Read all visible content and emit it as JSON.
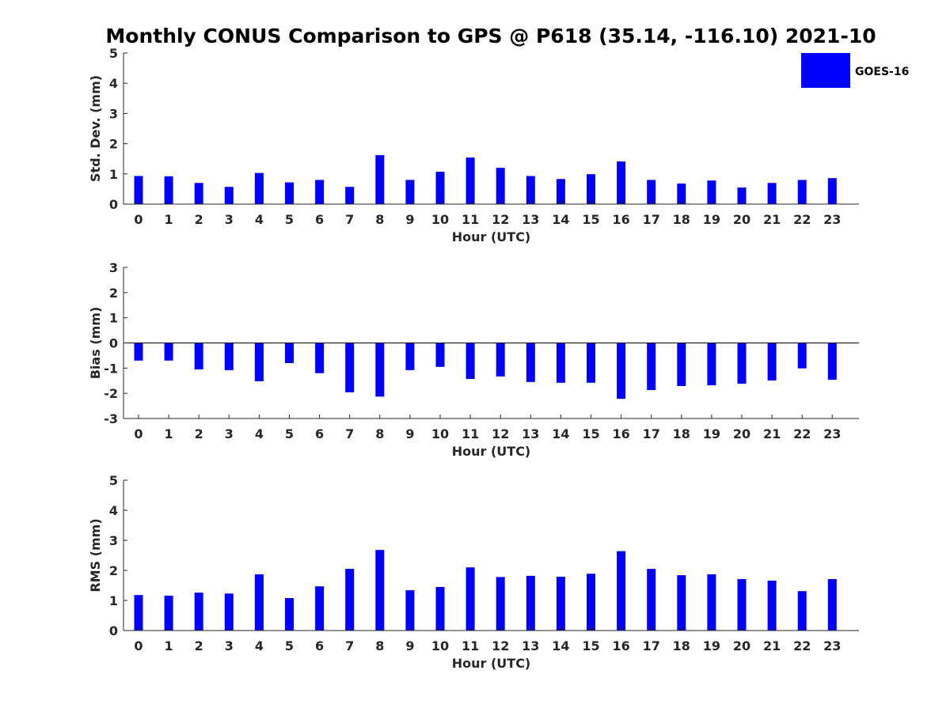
{
  "chart_data": {
    "title": "Monthly CONUS Comparison to GPS @ P618 (35.14, -116.10) 2021-10",
    "legend": {
      "label": "GOES-16",
      "placement": "top-right"
    },
    "bar_color": "#0000ff",
    "panels": [
      {
        "type": "bar",
        "ylabel": "Std. Dev. (mm)",
        "xlabel": "Hour (UTC)",
        "ylim": [
          0,
          5
        ],
        "yticks": [
          0,
          1,
          2,
          3,
          4,
          5
        ],
        "categories": [
          "0",
          "1",
          "2",
          "3",
          "4",
          "5",
          "6",
          "7",
          "8",
          "9",
          "10",
          "11",
          "12",
          "13",
          "14",
          "15",
          "16",
          "17",
          "18",
          "19",
          "20",
          "21",
          "22",
          "23"
        ],
        "series": [
          {
            "name": "GOES-16",
            "values": [
              0.93,
              0.92,
              0.7,
              0.57,
              1.03,
              0.72,
              0.8,
              0.57,
              1.62,
              0.8,
              1.07,
              1.54,
              1.2,
              0.93,
              0.83,
              0.99,
              1.41,
              0.8,
              0.68,
              0.78,
              0.55,
              0.7,
              0.8,
              0.86
            ]
          }
        ]
      },
      {
        "type": "bar",
        "ylabel": "Bias (mm)",
        "xlabel": "Hour (UTC)",
        "ylim": [
          -3,
          3
        ],
        "yticks": [
          -3,
          -2,
          -1,
          0,
          1,
          2,
          3
        ],
        "zero_line": true,
        "categories": [
          "0",
          "1",
          "2",
          "3",
          "4",
          "5",
          "6",
          "7",
          "8",
          "9",
          "10",
          "11",
          "12",
          "13",
          "14",
          "15",
          "16",
          "17",
          "18",
          "19",
          "20",
          "21",
          "22",
          "23"
        ],
        "series": [
          {
            "name": "GOES-16",
            "values": [
              -0.7,
              -0.7,
              -1.05,
              -1.08,
              -1.52,
              -0.8,
              -1.2,
              -1.96,
              -2.13,
              -1.08,
              -0.95,
              -1.43,
              -1.33,
              -1.55,
              -1.58,
              -1.58,
              -2.22,
              -1.87,
              -1.71,
              -1.68,
              -1.62,
              -1.49,
              -1.01,
              -1.46
            ]
          }
        ]
      },
      {
        "type": "bar",
        "ylabel": "RMS (mm)",
        "xlabel": "Hour (UTC)",
        "ylim": [
          0,
          5
        ],
        "yticks": [
          0,
          1,
          2,
          3,
          4,
          5
        ],
        "categories": [
          "0",
          "1",
          "2",
          "3",
          "4",
          "5",
          "6",
          "7",
          "8",
          "9",
          "10",
          "11",
          "12",
          "13",
          "14",
          "15",
          "16",
          "17",
          "18",
          "19",
          "20",
          "21",
          "22",
          "23"
        ],
        "series": [
          {
            "name": "GOES-16",
            "values": [
              1.18,
              1.16,
              1.26,
              1.23,
              1.87,
              1.08,
              1.47,
              2.05,
              2.68,
              1.34,
              1.45,
              2.1,
              1.78,
              1.82,
              1.79,
              1.89,
              2.64,
              2.05,
              1.84,
              1.87,
              1.71,
              1.66,
              1.31,
              1.71
            ]
          }
        ]
      }
    ]
  }
}
